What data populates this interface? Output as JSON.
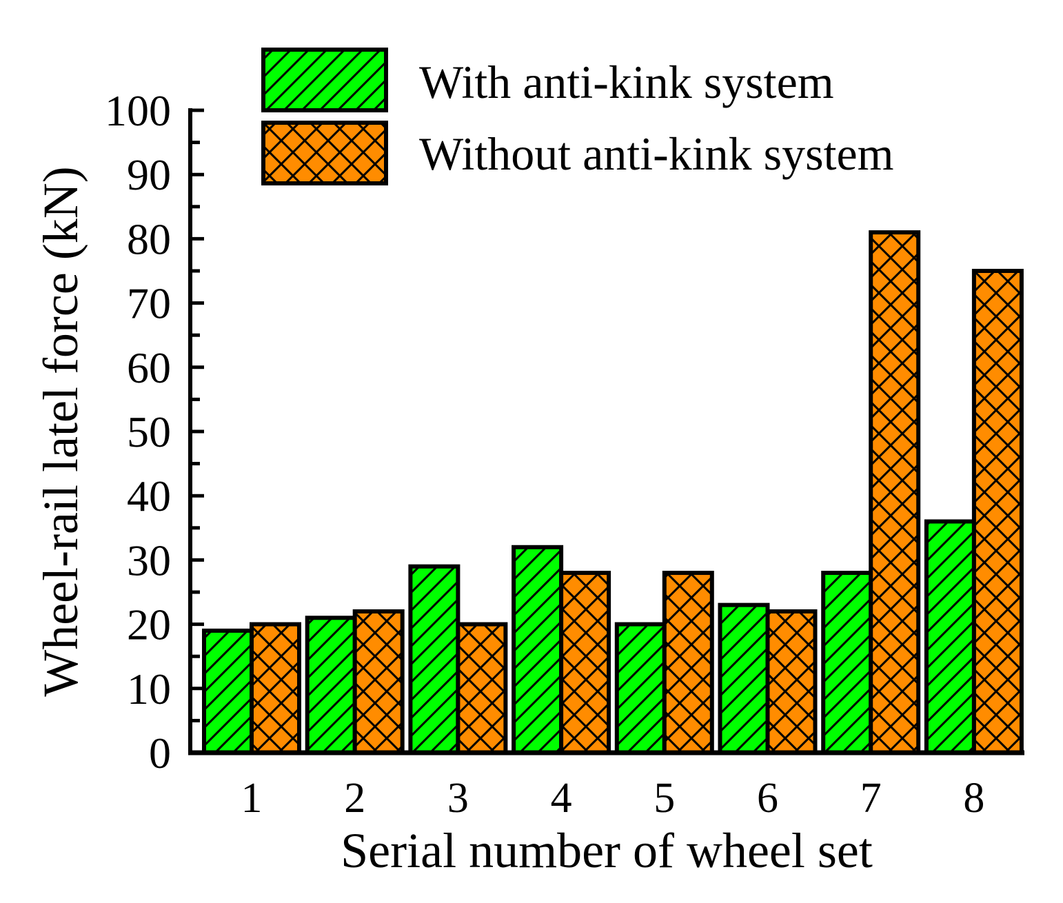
{
  "chart_data": {
    "type": "bar",
    "title": "",
    "xlabel": "Serial number of wheel set",
    "ylabel": "Wheel-rail latel force (kN)",
    "ylim": [
      0,
      100
    ],
    "yticks": [
      0,
      10,
      20,
      30,
      40,
      50,
      60,
      70,
      80,
      90,
      100
    ],
    "categories": [
      "1",
      "2",
      "3",
      "4",
      "5",
      "6",
      "7",
      "8"
    ],
    "series": [
      {
        "name": "With anti-kink system",
        "color": "#00ff00",
        "pattern": "diagonal-hatch",
        "values": [
          19,
          21,
          29,
          32,
          20,
          23,
          28,
          36
        ]
      },
      {
        "name": "Without anti-kink system",
        "color": "#ff8c00",
        "pattern": "cross-hatch",
        "values": [
          20,
          22,
          20,
          28,
          28,
          22,
          81,
          75
        ]
      }
    ],
    "legend_position": "top",
    "grid": false
  }
}
